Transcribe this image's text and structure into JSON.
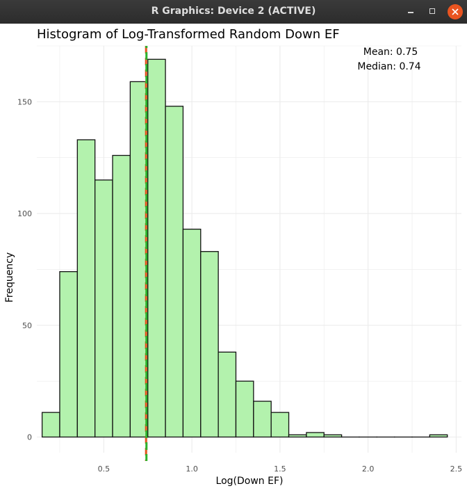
{
  "window": {
    "title": "R Graphics: Device 2 (ACTIVE)"
  },
  "colors": {
    "bar_fill": "#b3f2ad",
    "bar_stroke": "#111111",
    "mean_line": "#2db32d",
    "median_line": "#e0541c",
    "grid": "#ebebeb",
    "close_button": "#e95420"
  },
  "chart_data": {
    "type": "bar",
    "title": "Histogram of Log-Transformed Random Down EF",
    "xlabel": "Log(Down EF)",
    "ylabel": "Frequency",
    "xlim": [
      0.12,
      2.53
    ],
    "ylim": [
      -7,
      175
    ],
    "x_ticks": [
      0.5,
      1.0,
      1.5,
      2.0,
      2.5
    ],
    "x_tick_labels": [
      "0.5",
      "1.0",
      "1.5",
      "2.0",
      "2.5"
    ],
    "y_ticks": [
      0,
      50,
      100,
      150
    ],
    "y_tick_labels": [
      "0",
      "50",
      "100",
      "150"
    ],
    "bin_width": 0.1,
    "bin_centers": [
      0.2,
      0.3,
      0.4,
      0.5,
      0.6,
      0.7,
      0.8,
      0.9,
      1.0,
      1.1,
      1.2,
      1.3,
      1.4,
      1.5,
      1.6,
      1.7,
      1.8,
      1.9,
      2.0,
      2.1,
      2.2,
      2.3,
      2.4
    ],
    "values": [
      11,
      74,
      133,
      115,
      126,
      159,
      169,
      148,
      93,
      83,
      38,
      25,
      16,
      11,
      1,
      2,
      1,
      0,
      0,
      0,
      0,
      0,
      1
    ],
    "mean": 0.75,
    "median": 0.74,
    "annotations": {
      "mean_text": "Mean: 0.75",
      "median_text": "Median: 0.74"
    },
    "grid": true
  }
}
